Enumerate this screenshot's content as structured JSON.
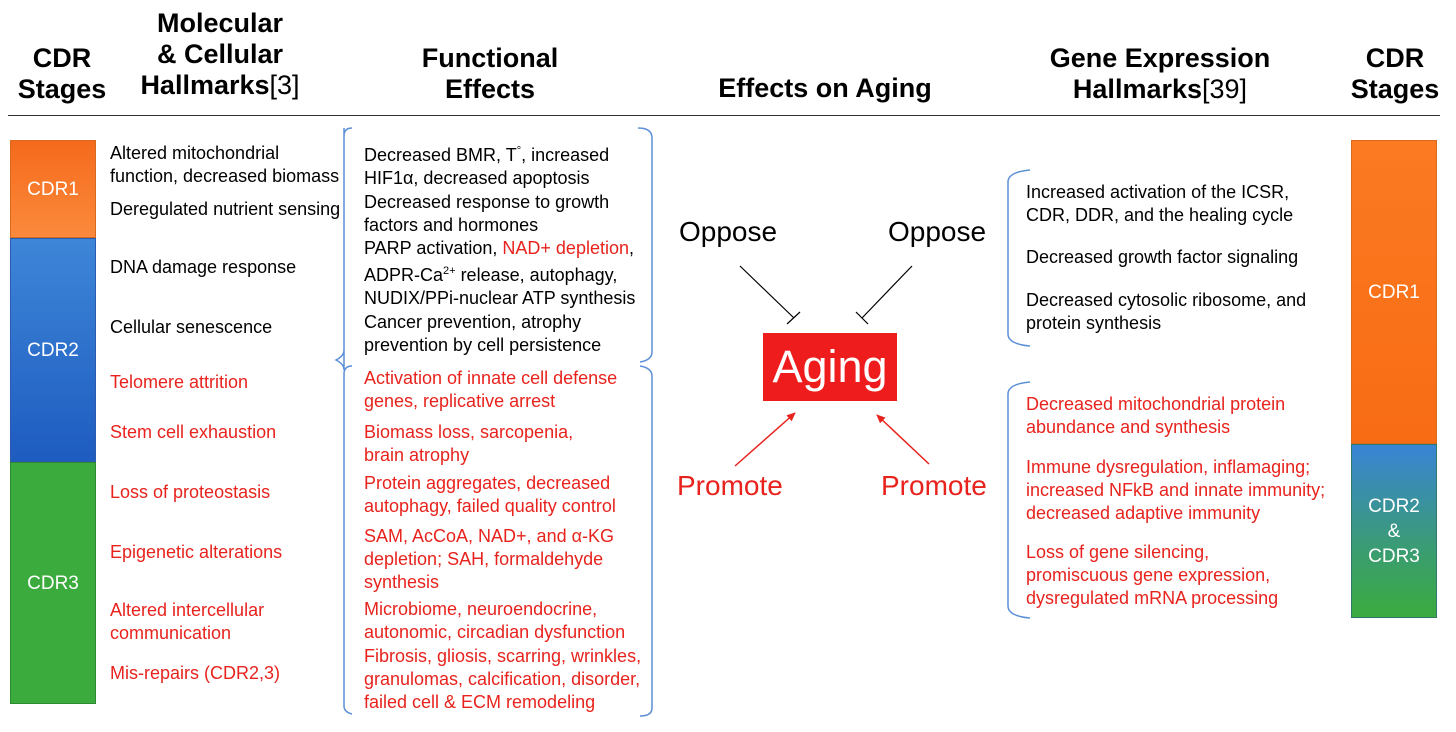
{
  "headers": {
    "cdr_left": "CDR\nStages",
    "molecular": "Molecular\n& Cellular\nHallmarks",
    "molecular_ref": "[3]",
    "functional": "Functional\nEffects",
    "aging": "Effects on Aging",
    "gene": "Gene Expression\nHallmarks",
    "gene_ref": "[39]",
    "cdr_right": "CDR\nStages"
  },
  "left_bars": {
    "cdr1": "CDR1",
    "cdr2": "CDR2",
    "cdr3": "CDR3"
  },
  "right_bars": {
    "cdr1": "CDR1",
    "cdr23": "CDR2\n&\nCDR3"
  },
  "hallmarks": [
    "Altered mitochondrial\nfunction, decreased biomass",
    "Deregulated nutrient sensing",
    "DNA damage response",
    "Cellular senescence",
    "Telomere attrition",
    "Stem cell exhaustion",
    "Loss of proteostasis",
    "Epigenetic alterations",
    "Altered intercellular\ncommunication",
    "Mis-repairs (CDR2,3)"
  ],
  "functional": {
    "f1a": "Decreased BMR, T",
    "f1sup": "°",
    "f1b": ", increased",
    "f1c": "HIF1",
    "f1alpha": "α",
    "f1d": ", decreased apoptosis",
    "f2": "Decreased response to growth\nfactors and hormones",
    "f3a": "PARP activation, ",
    "f3red": "NAD+ depletion",
    "f3b": ",",
    "f3c": "ADPR-Ca",
    "f3sup": "2+",
    "f3d": " release, autophagy,",
    "f3e": "NUDIX/PPi-nuclear ATP synthesis",
    "f4": "Cancer prevention, atrophy\nprevention by cell persistence",
    "f5": "Activation of innate cell defense\ngenes, replicative arrest",
    "f6": "Biomass loss, sarcopenia,\nbrain atrophy",
    "f7": "Protein aggregates, decreased\nautophagy, failed quality control",
    "f8": "SAM, AcCoA, NAD+, and α-KG\ndepletion; SAH, formaldehyde\nsynthesis",
    "f9": "Microbiome, neuroendocrine,\nautonomic, circadian dysfunction",
    "f10": "Fibrosis, gliosis, scarring, wrinkles,\ngranulomas, calcification, disorder,\nfailed cell & ECM remodeling"
  },
  "aging": {
    "center": "Aging",
    "oppose_left": "Oppose",
    "oppose_right": "Oppose",
    "promote_left": "Promote",
    "promote_right": "Promote"
  },
  "gene": [
    "Increased activation of the ICSR,\nCDR, DDR, and the healing cycle",
    "Decreased growth factor signaling",
    "Decreased cytosolic ribosome, and\nprotein synthesis",
    "Decreased mitochondrial protein\nabundance and synthesis",
    "Immune dysregulation, inflamaging;\nincreased NFkB and innate immunity;\ndecreased adaptive immunity",
    "Loss of gene silencing,\npromiscuous gene expression,\ndysregulated mRNA processing"
  ],
  "colors": {
    "cdr1_orange": "#fb7a22",
    "cdr2_blue": "#2b6fcf",
    "cdr3_green": "#3bab3e",
    "red_text": "#e8231d",
    "aging_red": "#ee1c1c",
    "bracket_blue": "#5b8fd6"
  }
}
